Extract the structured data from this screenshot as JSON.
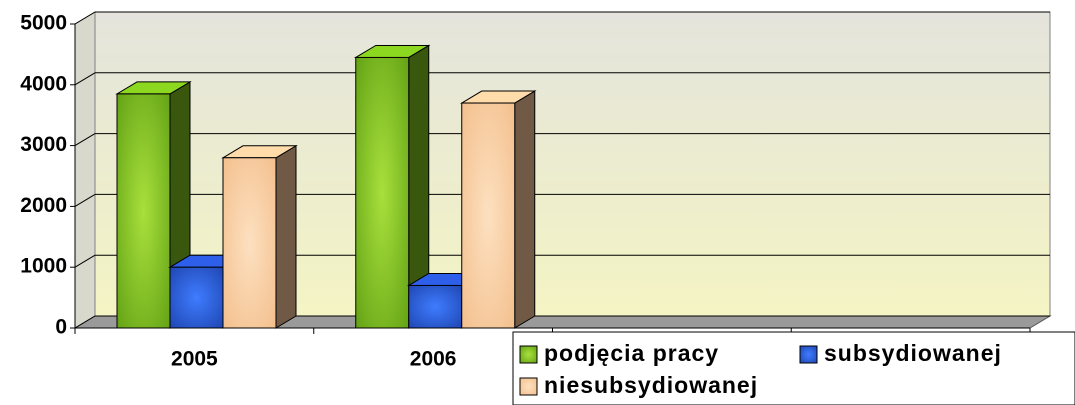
{
  "chart_data": {
    "type": "bar3d",
    "categories": [
      "2005",
      "2006",
      null,
      null
    ],
    "series": [
      {
        "name": "podjęcia pracy",
        "color": "#7fc31c",
        "values": [
          3850,
          4450,
          null,
          null
        ]
      },
      {
        "name": "subsydiowanej",
        "color": "#2a56d6",
        "values": [
          1000,
          700,
          null,
          null
        ]
      },
      {
        "name": "niesubsydiowanej",
        "color": "#f8c89a",
        "values": [
          2800,
          3700,
          null,
          null
        ]
      }
    ],
    "ylim": [
      0,
      5000
    ],
    "yticks": [
      0,
      1000,
      2000,
      3000,
      4000,
      5000
    ],
    "grid": true
  }
}
